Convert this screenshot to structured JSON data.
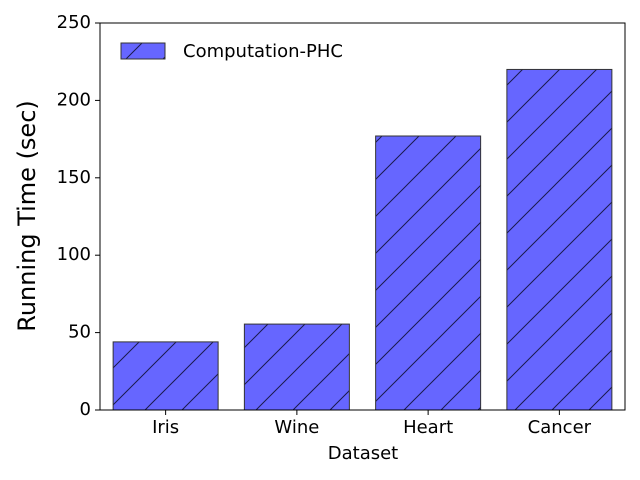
{
  "chart_data": {
    "type": "bar",
    "x_label": "Dataset",
    "y_label": "Running Time (sec)",
    "categories": [
      "Iris",
      "Wine",
      "Heart",
      "Cancer"
    ],
    "series": [
      {
        "name": "Computation-PHC",
        "color": "#6666ff",
        "values": [
          44,
          55.5,
          177,
          220
        ]
      }
    ],
    "ylim": [
      0,
      250
    ],
    "yticks": [
      0,
      50,
      100,
      150,
      200,
      250
    ],
    "legend": "upper left",
    "hatch": "/"
  }
}
